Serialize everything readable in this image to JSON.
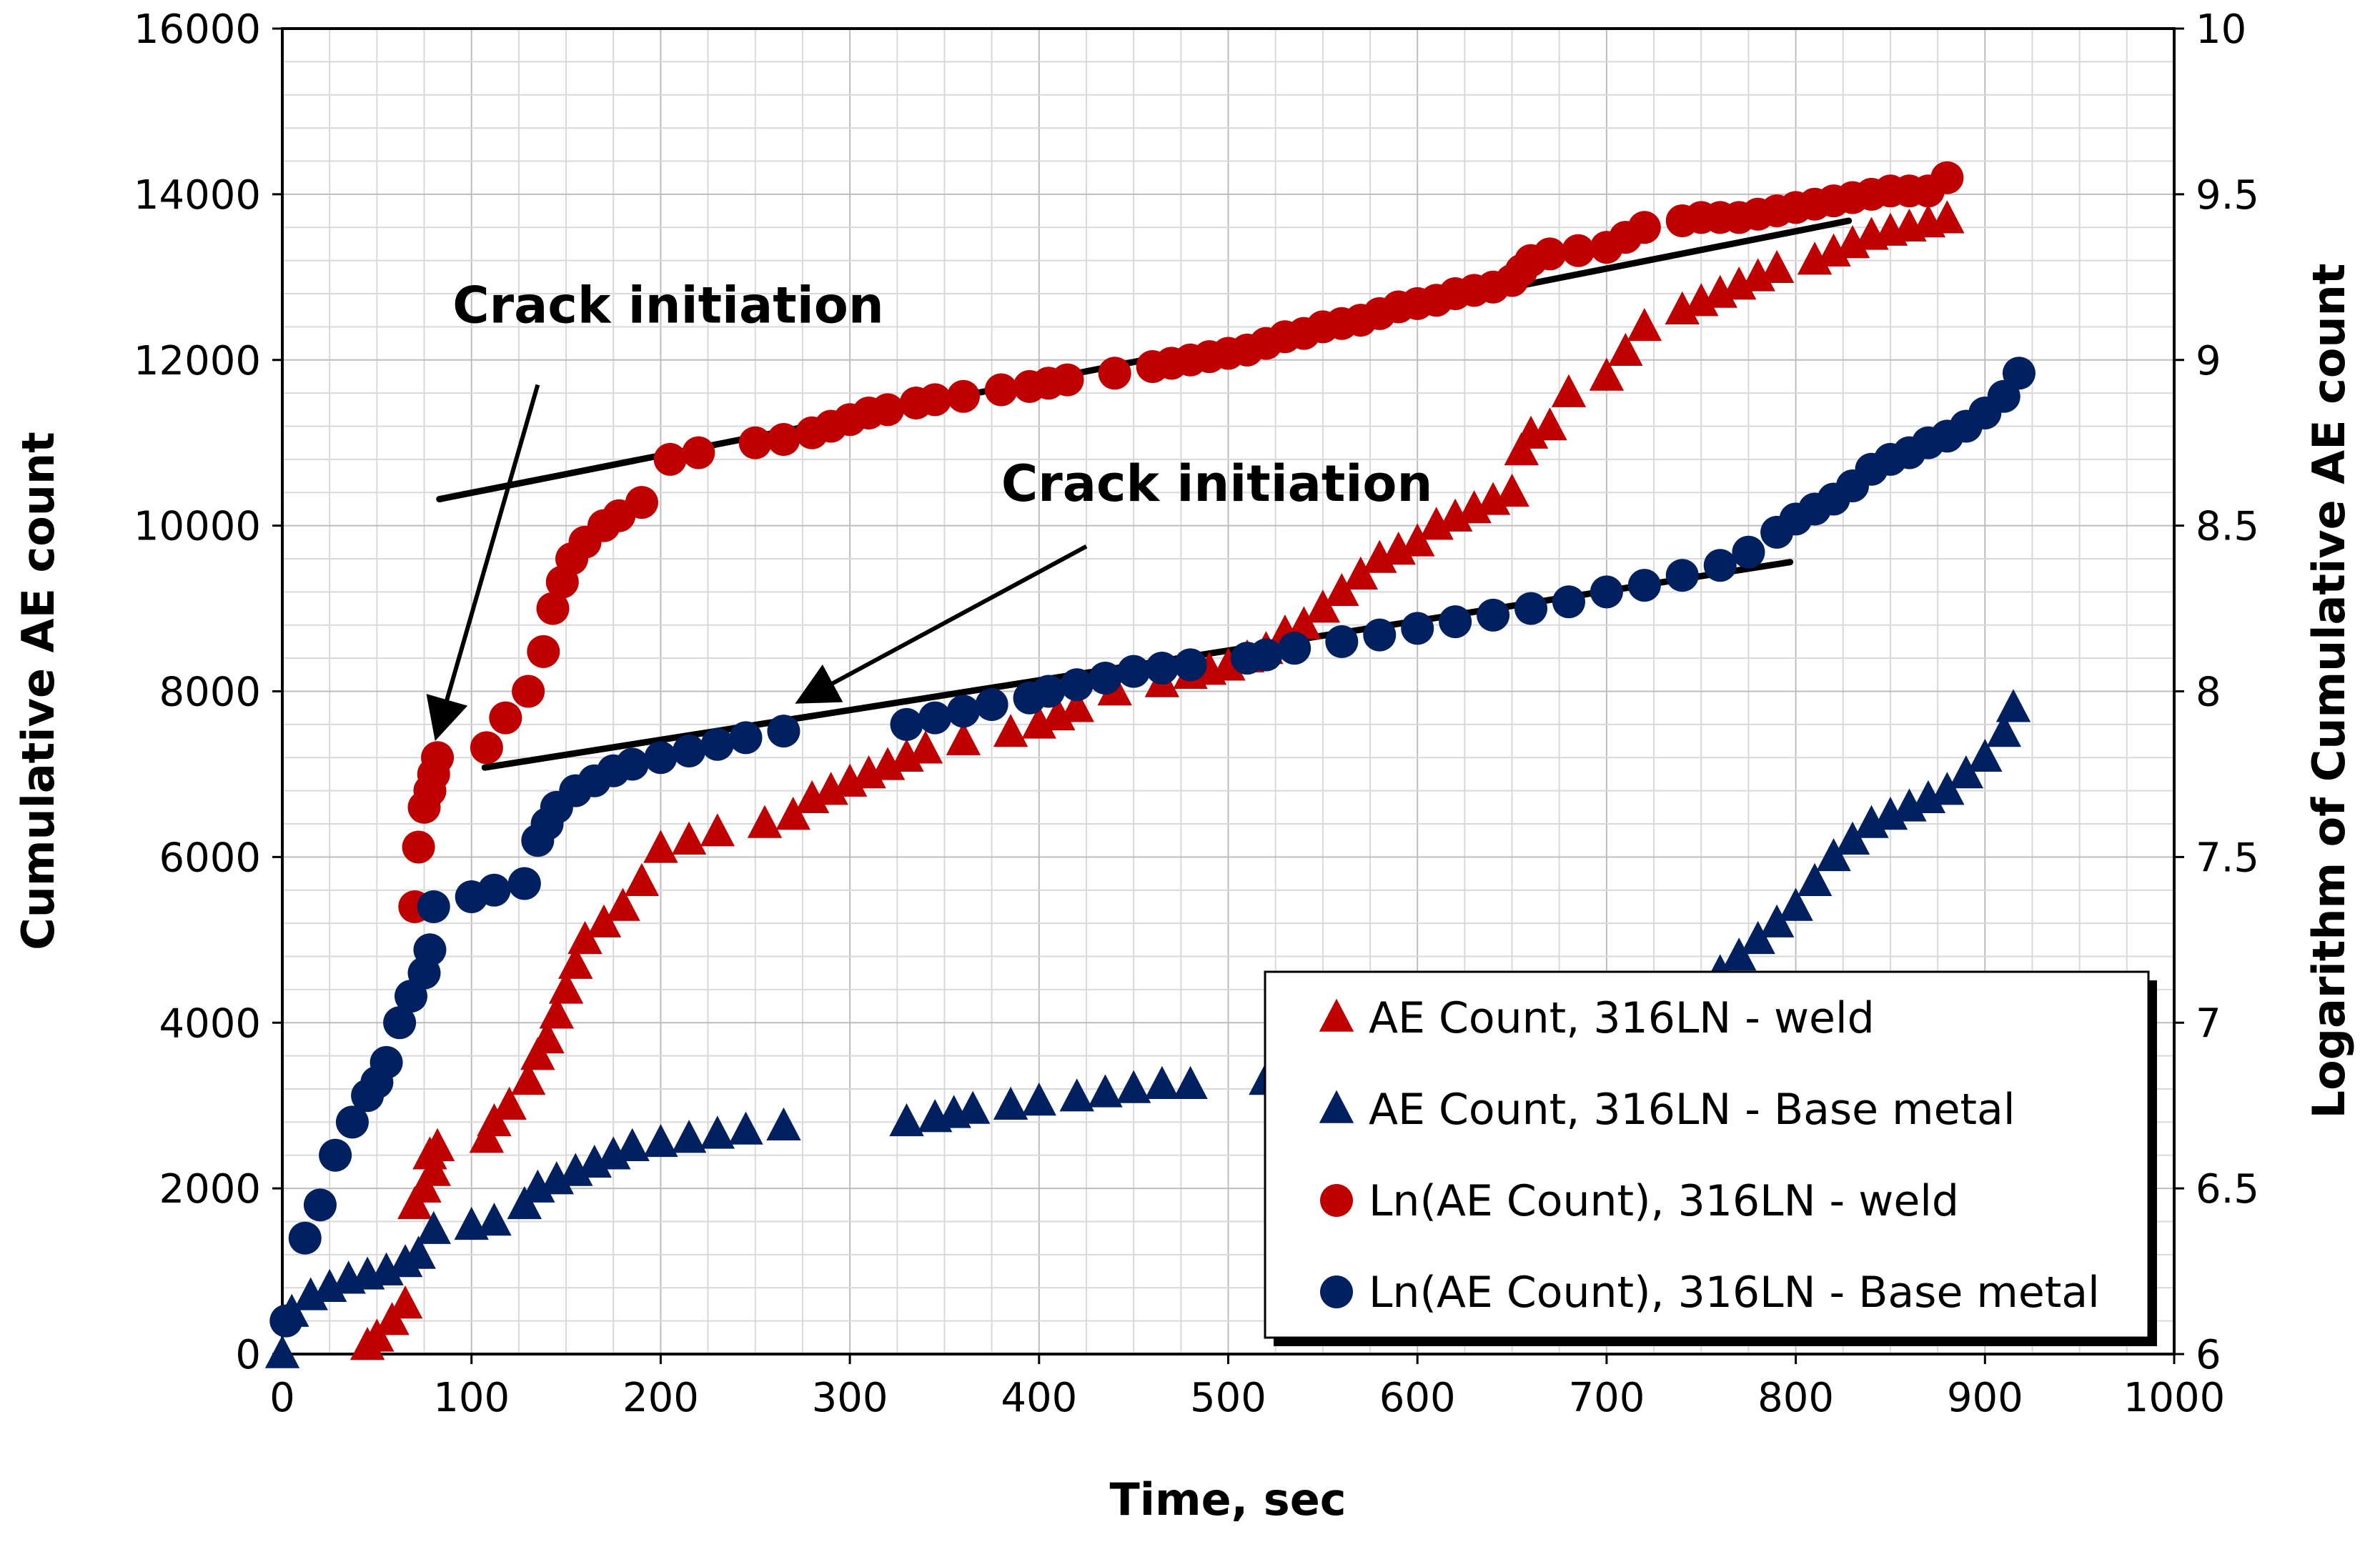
{
  "chart_data": {
    "type": "scatter",
    "xlabel": "Time, sec",
    "ylabel": "Cumulative AE count",
    "y2label": "Logarithm of Cumulative AE count",
    "xlim": [
      0,
      1000
    ],
    "ylim": [
      0,
      16000
    ],
    "y2lim": [
      6,
      10
    ],
    "xticks": [
      0,
      100,
      200,
      300,
      400,
      500,
      600,
      700,
      800,
      900,
      1000
    ],
    "yticks": [
      0,
      2000,
      4000,
      6000,
      8000,
      10000,
      12000,
      14000,
      16000
    ],
    "y2ticks": [
      "6",
      "6.5",
      "7",
      "7.5",
      "8",
      "8.5",
      "9",
      "9.5",
      "10"
    ],
    "grid": true,
    "legend_position": "bottom-right",
    "colors": {
      "weld": "#C00000",
      "base": "#002060"
    },
    "annotations": [
      {
        "text": "Crack initiation",
        "label_at": [
          90,
          12450
        ],
        "arrow_from": [
          135,
          11700
        ],
        "arrow_to": [
          82,
          7500
        ],
        "target": "Ln(AE Count), 316LN - weld"
      },
      {
        "text": "Crack initiation",
        "label_at": [
          380,
          10300
        ],
        "arrow_from": [
          425,
          9750
        ],
        "arrow_to": [
          275,
          7900
        ],
        "target": "Ln(AE Count), 316LN - Base metal"
      }
    ],
    "trend_lines": [
      {
        "name": "weld-trend",
        "axis": "y2",
        "x": [
          83,
          828
        ],
        "y": [
          8.58,
          9.42
        ]
      },
      {
        "name": "base-trend",
        "axis": "y2",
        "x": [
          107,
          797
        ],
        "y": [
          7.77,
          8.39
        ]
      }
    ],
    "series": [
      {
        "name": "AE Count, 316LN - weld",
        "axis": "y",
        "marker": "triangle",
        "color": "#C00000",
        "x": [
          45,
          50,
          58,
          65,
          70,
          72,
          75,
          78,
          80,
          82,
          108,
          112,
          120,
          130,
          135,
          140,
          145,
          150,
          155,
          160,
          170,
          180,
          190,
          200,
          215,
          230,
          255,
          270,
          280,
          290,
          300,
          310,
          320,
          330,
          340,
          360,
          385,
          400,
          410,
          420,
          440,
          465,
          480,
          490,
          500,
          510,
          520,
          530,
          540,
          550,
          560,
          570,
          580,
          590,
          600,
          610,
          620,
          630,
          640,
          650,
          655,
          660,
          670,
          680,
          700,
          710,
          720,
          740,
          750,
          760,
          770,
          780,
          790,
          810,
          820,
          830,
          840,
          850,
          860,
          870,
          880
        ],
        "y": [
          100,
          200,
          400,
          600,
          1800,
          1200,
          2000,
          2400,
          2200,
          2500,
          2600,
          2800,
          3000,
          3300,
          3600,
          3800,
          4100,
          4400,
          4700,
          5000,
          5200,
          5400,
          5700,
          6100,
          6200,
          6300,
          6400,
          6500,
          6700,
          6800,
          6900,
          7000,
          7100,
          7200,
          7300,
          7400,
          7500,
          7600,
          7700,
          7800,
          8000,
          8100,
          8200,
          8250,
          8300,
          8400,
          8500,
          8700,
          8800,
          9000,
          9200,
          9400,
          9600,
          9700,
          9800,
          10000,
          10100,
          10200,
          10300,
          10400,
          10900,
          11100,
          11200,
          11600,
          11800,
          12100,
          12400,
          12600,
          12700,
          12800,
          12900,
          13000,
          13100,
          13200,
          13300,
          13400,
          13500,
          13550,
          13600,
          13650,
          13700
        ]
      },
      {
        "name": "AE Count, 316LN - Base metal",
        "axis": "y",
        "marker": "triangle",
        "color": "#002060",
        "x": [
          0,
          5,
          15,
          25,
          35,
          45,
          55,
          65,
          72,
          80,
          100,
          112,
          128,
          135,
          145,
          155,
          165,
          175,
          185,
          200,
          215,
          230,
          245,
          265,
          330,
          345,
          355,
          365,
          385,
          400,
          420,
          435,
          450,
          465,
          480,
          520,
          760,
          770,
          780,
          790,
          800,
          810,
          820,
          830,
          840,
          850,
          860,
          870,
          880,
          890,
          900,
          910,
          915
        ],
        "y": [
          0,
          500,
          700,
          800,
          900,
          950,
          1000,
          1100,
          1200,
          1500,
          1550,
          1600,
          1800,
          2000,
          2100,
          2200,
          2300,
          2400,
          2500,
          2550,
          2600,
          2650,
          2700,
          2750,
          2800,
          2850,
          2900,
          2950,
          3000,
          3050,
          3100,
          3150,
          3200,
          3250,
          3250,
          3300,
          4600,
          4800,
          5000,
          5200,
          5400,
          5700,
          6000,
          6200,
          6400,
          6500,
          6600,
          6700,
          6800,
          7000,
          7200,
          7500,
          7800
        ]
      },
      {
        "name": "Ln(AE Count), 316LN - weld",
        "axis": "y2",
        "marker": "circle",
        "color": "#C00000",
        "x": [
          70,
          72,
          75,
          78,
          80,
          82,
          108,
          118,
          130,
          138,
          143,
          148,
          153,
          160,
          170,
          178,
          190,
          205,
          220,
          250,
          265,
          280,
          290,
          300,
          310,
          320,
          335,
          345,
          360,
          380,
          395,
          405,
          415,
          440,
          460,
          470,
          480,
          490,
          500,
          510,
          520,
          530,
          540,
          550,
          560,
          570,
          580,
          590,
          600,
          610,
          620,
          630,
          640,
          650,
          655,
          660,
          670,
          685,
          700,
          710,
          720,
          740,
          750,
          760,
          770,
          780,
          790,
          800,
          810,
          820,
          830,
          840,
          850,
          860,
          870,
          880
        ],
        "y": [
          7.35,
          7.53,
          7.65,
          7.7,
          7.75,
          7.8,
          7.83,
          7.92,
          8.0,
          8.12,
          8.25,
          8.33,
          8.4,
          8.45,
          8.5,
          8.53,
          8.57,
          8.7,
          8.72,
          8.75,
          8.76,
          8.78,
          8.8,
          8.82,
          8.84,
          8.85,
          8.87,
          8.88,
          8.89,
          8.91,
          8.92,
          8.93,
          8.94,
          8.96,
          8.98,
          8.99,
          9.0,
          9.01,
          9.02,
          9.03,
          9.05,
          9.07,
          9.08,
          9.1,
          9.11,
          9.12,
          9.14,
          9.16,
          9.17,
          9.18,
          9.2,
          9.21,
          9.22,
          9.24,
          9.27,
          9.3,
          9.32,
          9.33,
          9.34,
          9.37,
          9.4,
          9.42,
          9.43,
          9.43,
          9.43,
          9.44,
          9.45,
          9.46,
          9.47,
          9.48,
          9.49,
          9.5,
          9.51,
          9.51,
          9.51,
          9.55
        ]
      },
      {
        "name": "Ln(AE Count), 316LN - Base metal",
        "axis": "y2",
        "marker": "circle",
        "color": "#002060",
        "x": [
          2,
          12,
          20,
          28,
          37,
          45,
          50,
          55,
          62,
          68,
          75,
          78,
          80,
          100,
          112,
          128,
          135,
          140,
          145,
          155,
          165,
          175,
          185,
          200,
          215,
          230,
          245,
          265,
          330,
          345,
          360,
          375,
          395,
          405,
          420,
          435,
          450,
          465,
          480,
          510,
          520,
          535,
          560,
          580,
          600,
          620,
          640,
          660,
          680,
          700,
          720,
          740,
          760,
          775,
          790,
          800,
          810,
          820,
          830,
          840,
          850,
          860,
          870,
          880,
          890,
          900,
          910,
          918
        ],
        "y": [
          6.1,
          6.35,
          6.45,
          6.6,
          6.7,
          6.78,
          6.82,
          6.88,
          7.0,
          7.08,
          7.15,
          7.22,
          7.35,
          7.38,
          7.4,
          7.42,
          7.55,
          7.6,
          7.65,
          7.7,
          7.73,
          7.76,
          7.78,
          7.8,
          7.82,
          7.84,
          7.86,
          7.88,
          7.9,
          7.92,
          7.94,
          7.96,
          7.98,
          8.0,
          8.02,
          8.04,
          8.06,
          8.07,
          8.08,
          8.1,
          8.11,
          8.13,
          8.15,
          8.17,
          8.19,
          8.21,
          8.23,
          8.25,
          8.27,
          8.3,
          8.32,
          8.35,
          8.38,
          8.42,
          8.48,
          8.52,
          8.55,
          8.58,
          8.62,
          8.67,
          8.7,
          8.72,
          8.75,
          8.77,
          8.8,
          8.84,
          8.89,
          8.96
        ]
      }
    ]
  }
}
